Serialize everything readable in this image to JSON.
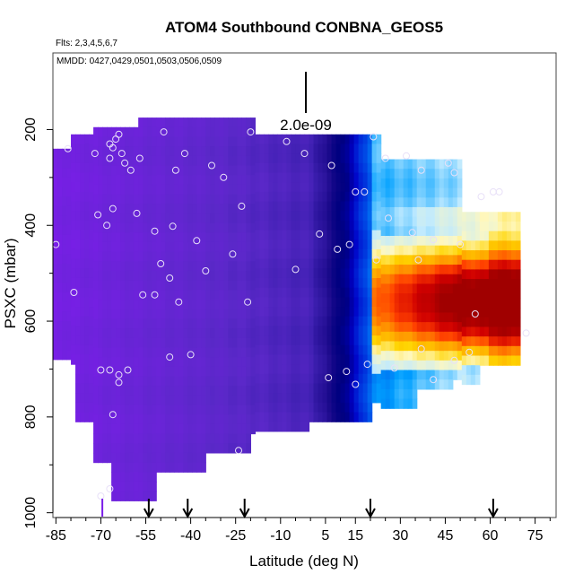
{
  "chart_data": {
    "type": "heatmap",
    "title": "ATOM4 Southbound CONBNA_GEOS5",
    "flights_note": "Flts: 2,3,4,5,6,7",
    "dates_note": "MMDD: 0427,0429,0501,0503,0506,0509",
    "xlabel": "Latitude (deg N)",
    "ylabel": "PSXC (mbar)",
    "xlim": [
      -86,
      82
    ],
    "ylim": [
      1010,
      40
    ],
    "y_reversed": true,
    "x_tick_labels": [
      "-85",
      "-70",
      "-55",
      "-40",
      "-25",
      "-10",
      "5",
      "15",
      "30",
      "45",
      "60",
      "75"
    ],
    "x_tick_values": [
      -85,
      -70,
      -55,
      -40,
      -25,
      -10,
      5,
      15,
      30,
      45,
      60,
      75
    ],
    "y_tick_labels": [
      "200",
      "400",
      "600",
      "800",
      "1000"
    ],
    "y_tick_values": [
      200,
      400,
      600,
      800,
      1000
    ],
    "scale_bar_label": "2.0e-09",
    "arrow_latitudes": [
      -54,
      -41,
      -22,
      20,
      61
    ],
    "colorscale": [
      "#7a1ee8",
      "#6a24d8",
      "#5a28c8",
      "#3d1fb0",
      "#1c0a8c",
      "#000080",
      "#0000c8",
      "#0050e8",
      "#00a0ff",
      "#bfeaff",
      "#fff8c0",
      "#ffd400",
      "#ff9a00",
      "#ff4000",
      "#d00000",
      "#a00000"
    ],
    "observation_points": [
      {
        "lat": -81,
        "p": 240
      },
      {
        "lat": -72,
        "p": 250
      },
      {
        "lat": -67,
        "p": 230
      },
      {
        "lat": -66,
        "p": 238
      },
      {
        "lat": -65,
        "p": 220
      },
      {
        "lat": -64,
        "p": 210
      },
      {
        "lat": -67,
        "p": 260
      },
      {
        "lat": -63,
        "p": 250
      },
      {
        "lat": -62,
        "p": 270
      },
      {
        "lat": -60,
        "p": 285
      },
      {
        "lat": -57,
        "p": 260
      },
      {
        "lat": -49,
        "p": 205
      },
      {
        "lat": -45,
        "p": 285
      },
      {
        "lat": -42,
        "p": 250
      },
      {
        "lat": -33,
        "p": 275
      },
      {
        "lat": -29,
        "p": 300
      },
      {
        "lat": -20,
        "p": 205
      },
      {
        "lat": -8,
        "p": 225
      },
      {
        "lat": -2,
        "p": 250
      },
      {
        "lat": 7,
        "p": 275
      },
      {
        "lat": 21,
        "p": 215
      },
      {
        "lat": 25,
        "p": 260
      },
      {
        "lat": 32,
        "p": 255
      },
      {
        "lat": 37,
        "p": 285
      },
      {
        "lat": 46,
        "p": 270
      },
      {
        "lat": 48,
        "p": 290
      },
      {
        "lat": 57,
        "p": 340
      },
      {
        "lat": 61,
        "p": 330
      },
      {
        "lat": 63,
        "p": 330
      },
      {
        "lat": 15,
        "p": 330
      },
      {
        "lat": 18,
        "p": 330
      },
      {
        "lat": -85,
        "p": 440
      },
      {
        "lat": -71,
        "p": 378
      },
      {
        "lat": -66,
        "p": 365
      },
      {
        "lat": -68,
        "p": 400
      },
      {
        "lat": -58,
        "p": 375
      },
      {
        "lat": -52,
        "p": 412
      },
      {
        "lat": -46,
        "p": 402
      },
      {
        "lat": -38,
        "p": 432
      },
      {
        "lat": -26,
        "p": 460
      },
      {
        "lat": -23,
        "p": 360
      },
      {
        "lat": -5,
        "p": 492
      },
      {
        "lat": 3,
        "p": 418
      },
      {
        "lat": 9,
        "p": 450
      },
      {
        "lat": 13,
        "p": 440
      },
      {
        "lat": 22,
        "p": 472
      },
      {
        "lat": 26,
        "p": 385
      },
      {
        "lat": 34,
        "p": 415
      },
      {
        "lat": 36,
        "p": 472
      },
      {
        "lat": 41,
        "p": 430
      },
      {
        "lat": 50,
        "p": 440
      },
      {
        "lat": -79,
        "p": 540
      },
      {
        "lat": -56,
        "p": 545
      },
      {
        "lat": -52,
        "p": 545
      },
      {
        "lat": -50,
        "p": 480
      },
      {
        "lat": -47,
        "p": 510
      },
      {
        "lat": -44,
        "p": 560
      },
      {
        "lat": -35,
        "p": 495
      },
      {
        "lat": -21,
        "p": 560
      },
      {
        "lat": -70,
        "p": 702
      },
      {
        "lat": -67,
        "p": 702
      },
      {
        "lat": -64,
        "p": 712
      },
      {
        "lat": -64,
        "p": 728
      },
      {
        "lat": -61,
        "p": 702
      },
      {
        "lat": -47,
        "p": 675
      },
      {
        "lat": -40,
        "p": 670
      },
      {
        "lat": -66,
        "p": 795
      },
      {
        "lat": 6,
        "p": 718
      },
      {
        "lat": 12,
        "p": 705
      },
      {
        "lat": 15,
        "p": 732
      },
      {
        "lat": 19,
        "p": 690
      },
      {
        "lat": 28,
        "p": 698
      },
      {
        "lat": 37,
        "p": 658
      },
      {
        "lat": 48,
        "p": 682
      },
      {
        "lat": 53,
        "p": 665
      },
      {
        "lat": 55,
        "p": 585
      },
      {
        "lat": 72,
        "p": 625
      },
      {
        "lat": 41,
        "p": 722
      },
      {
        "lat": -24,
        "p": 870
      },
      {
        "lat": -67,
        "p": 950
      },
      {
        "lat": -70,
        "p": 965
      }
    ]
  }
}
